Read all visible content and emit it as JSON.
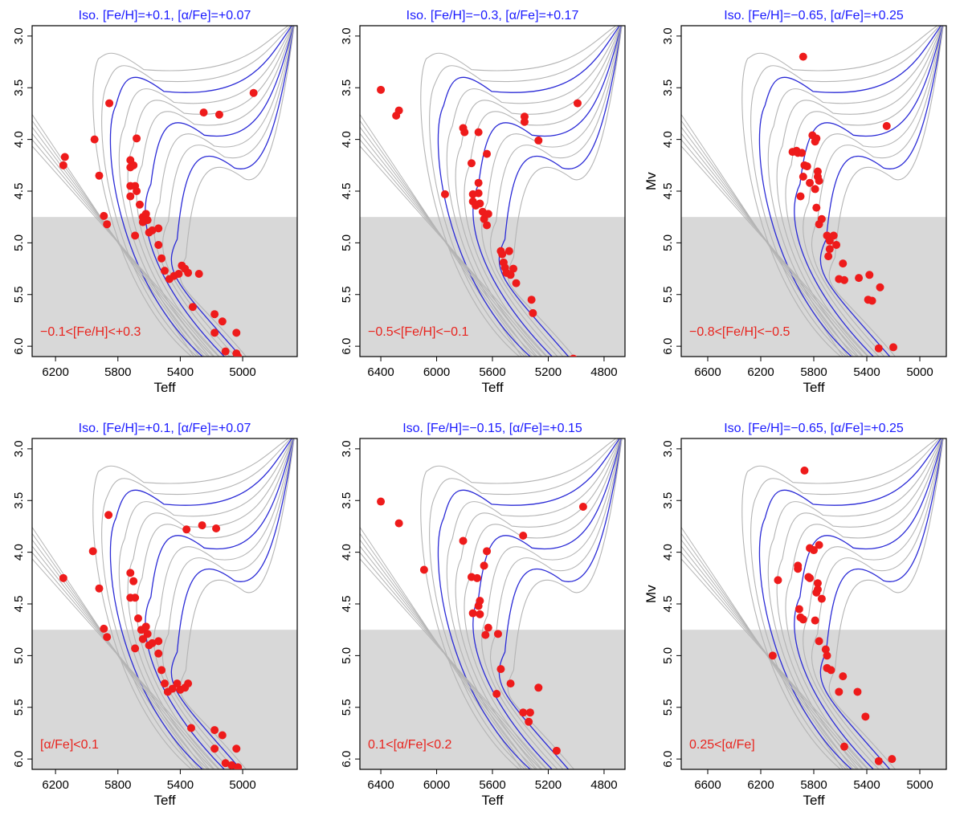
{
  "figure": {
    "colors": {
      "isochrone_main": "#2b2bd6",
      "isochrone_other": "#b4b4b4",
      "points": "#ee1b1b",
      "title": "#1a1aff",
      "annotation": "#e8241e",
      "shade": "#d8d8d8"
    }
  },
  "chart_data": [
    {
      "type": "scatter",
      "title": "Iso. [Fe/H]=+0.1,  [α/Fe]=+0.07",
      "xlabel": "Teff",
      "ylabel": "",
      "xlim": [
        6350,
        4650
      ],
      "ylim": [
        6.1,
        2.9
      ],
      "xticks": [
        "6200",
        "5800",
        "5400",
        "5000"
      ],
      "yticks": [
        "3.0",
        "3.5",
        "4.0",
        "4.5",
        "5.0",
        "5.5",
        "6.0"
      ],
      "shade_mv_min": 4.75,
      "annotation": "−0.1<[Fe/H]<+0.3",
      "points": [
        [
          6140,
          4.17
        ],
        [
          6150,
          4.25
        ],
        [
          5950,
          4.0
        ],
        [
          5920,
          4.35
        ],
        [
          5890,
          4.74
        ],
        [
          5870,
          4.82
        ],
        [
          5855,
          3.65
        ],
        [
          5680,
          3.99
        ],
        [
          5720,
          4.2
        ],
        [
          5700,
          4.25
        ],
        [
          5720,
          4.27
        ],
        [
          5720,
          4.45
        ],
        [
          5690,
          4.45
        ],
        [
          5720,
          4.55
        ],
        [
          5680,
          4.5
        ],
        [
          5660,
          4.63
        ],
        [
          5640,
          4.75
        ],
        [
          5620,
          4.72
        ],
        [
          5610,
          4.78
        ],
        [
          5640,
          4.8
        ],
        [
          5600,
          4.9
        ],
        [
          5580,
          4.88
        ],
        [
          5540,
          4.86
        ],
        [
          5690,
          4.93
        ],
        [
          5540,
          5.02
        ],
        [
          5520,
          5.15
        ],
        [
          5500,
          5.27
        ],
        [
          5470,
          5.35
        ],
        [
          5440,
          5.32
        ],
        [
          5410,
          5.3
        ],
        [
          5390,
          5.22
        ],
        [
          5370,
          5.25
        ],
        [
          5350,
          5.29
        ],
        [
          5320,
          5.62
        ],
        [
          5280,
          5.3
        ],
        [
          5250,
          3.74
        ],
        [
          5150,
          3.76
        ],
        [
          5180,
          5.69
        ],
        [
          5130,
          5.76
        ],
        [
          5180,
          5.87
        ],
        [
          5040,
          5.87
        ],
        [
          5110,
          6.05
        ],
        [
          5040,
          6.07
        ],
        [
          5030,
          6.1
        ],
        [
          4930,
          3.55
        ]
      ]
    },
    {
      "type": "scatter",
      "title": "Iso. [Fe/H]=−0.3,  [α/Fe]=+0.17",
      "xlabel": "Teff",
      "ylabel": "",
      "xlim": [
        6550,
        4650
      ],
      "ylim": [
        6.1,
        2.9
      ],
      "xticks": [
        "6400",
        "6000",
        "5600",
        "5200",
        "4800"
      ],
      "yticks": [
        "3.0",
        "3.5",
        "4.0",
        "4.5",
        "5.0",
        "5.5",
        "6.0"
      ],
      "shade_mv_min": 4.75,
      "annotation": "−0.5<[Fe/H]<−0.1",
      "points": [
        [
          6400,
          3.52
        ],
        [
          6290,
          3.77
        ],
        [
          6270,
          3.72
        ],
        [
          5940,
          4.53
        ],
        [
          5810,
          3.89
        ],
        [
          5800,
          3.93
        ],
        [
          5750,
          4.23
        ],
        [
          5740,
          4.53
        ],
        [
          5740,
          4.6
        ],
        [
          5720,
          4.64
        ],
        [
          5700,
          4.42
        ],
        [
          5700,
          4.52
        ],
        [
          5690,
          4.62
        ],
        [
          5700,
          3.93
        ],
        [
          5670,
          4.7
        ],
        [
          5640,
          4.14
        ],
        [
          5660,
          4.77
        ],
        [
          5640,
          4.83
        ],
        [
          5630,
          4.72
        ],
        [
          5540,
          5.08
        ],
        [
          5530,
          5.11
        ],
        [
          5520,
          5.19
        ],
        [
          5510,
          5.24
        ],
        [
          5500,
          5.29
        ],
        [
          5480,
          5.08
        ],
        [
          5470,
          5.31
        ],
        [
          5450,
          5.25
        ],
        [
          5430,
          5.39
        ],
        [
          5370,
          3.78
        ],
        [
          5370,
          3.83
        ],
        [
          5270,
          4.01
        ],
        [
          5320,
          5.55
        ],
        [
          5310,
          5.68
        ],
        [
          5020,
          6.12
        ],
        [
          4990,
          3.65
        ]
      ]
    },
    {
      "type": "scatter",
      "title": "Iso. [Fe/H]=−0.65,  [α/Fe]=+0.25",
      "xlabel": "Teff",
      "ylabel": "Mv",
      "xlim": [
        6800,
        4800
      ],
      "ylim": [
        6.1,
        2.9
      ],
      "xticks": [
        "6600",
        "6200",
        "5800",
        "5400",
        "5000"
      ],
      "yticks": [
        "3.0",
        "3.5",
        "4.0",
        "4.5",
        "5.0",
        "5.5",
        "6.0"
      ],
      "shade_mv_min": 4.75,
      "annotation": "−0.8<[Fe/H]<−0.5",
      "points": [
        [
          5880,
          3.2
        ],
        [
          5960,
          4.12
        ],
        [
          5930,
          4.11
        ],
        [
          5920,
          4.13
        ],
        [
          5890,
          4.13
        ],
        [
          5880,
          4.36
        ],
        [
          5870,
          4.25
        ],
        [
          5850,
          4.26
        ],
        [
          5830,
          4.42
        ],
        [
          5810,
          3.96
        ],
        [
          5790,
          4.02
        ],
        [
          5780,
          3.99
        ],
        [
          5770,
          4.31
        ],
        [
          5770,
          4.36
        ],
        [
          5760,
          4.4
        ],
        [
          5790,
          4.48
        ],
        [
          5780,
          4.66
        ],
        [
          5760,
          4.82
        ],
        [
          5740,
          4.77
        ],
        [
          5700,
          4.93
        ],
        [
          5680,
          4.98
        ],
        [
          5680,
          5.06
        ],
        [
          5690,
          5.13
        ],
        [
          5650,
          4.93
        ],
        [
          5630,
          5.02
        ],
        [
          5610,
          5.35
        ],
        [
          5580,
          5.2
        ],
        [
          5570,
          5.36
        ],
        [
          5460,
          5.34
        ],
        [
          5380,
          5.31
        ],
        [
          5390,
          5.55
        ],
        [
          5360,
          5.56
        ],
        [
          5300,
          5.43
        ],
        [
          5250,
          3.87
        ],
        [
          5310,
          6.02
        ],
        [
          5200,
          6.01
        ],
        [
          5900,
          4.55
        ]
      ]
    },
    {
      "type": "scatter",
      "title": "Iso. [Fe/H]=+0.1,  [α/Fe]=+0.07",
      "xlabel": "Teff",
      "ylabel": "",
      "xlim": [
        6350,
        4650
      ],
      "ylim": [
        6.1,
        2.9
      ],
      "xticks": [
        "6200",
        "5800",
        "5400",
        "5000"
      ],
      "yticks": [
        "3.0",
        "3.5",
        "4.0",
        "4.5",
        "5.0",
        "5.5",
        "6.0"
      ],
      "shade_mv_min": 4.75,
      "annotation": "[α/Fe]<0.1",
      "points": [
        [
          6150,
          4.25
        ],
        [
          5960,
          3.99
        ],
        [
          5920,
          4.35
        ],
        [
          5890,
          4.74
        ],
        [
          5870,
          4.82
        ],
        [
          5860,
          3.64
        ],
        [
          5720,
          4.2
        ],
        [
          5700,
          4.28
        ],
        [
          5690,
          4.44
        ],
        [
          5720,
          4.44
        ],
        [
          5670,
          4.64
        ],
        [
          5650,
          4.75
        ],
        [
          5620,
          4.72
        ],
        [
          5610,
          4.79
        ],
        [
          5640,
          4.84
        ],
        [
          5600,
          4.9
        ],
        [
          5580,
          4.88
        ],
        [
          5690,
          4.93
        ],
        [
          5540,
          4.86
        ],
        [
          5540,
          4.98
        ],
        [
          5520,
          5.14
        ],
        [
          5500,
          5.27
        ],
        [
          5480,
          5.35
        ],
        [
          5450,
          5.32
        ],
        [
          5420,
          5.27
        ],
        [
          5400,
          5.33
        ],
        [
          5370,
          5.31
        ],
        [
          5350,
          5.27
        ],
        [
          5330,
          5.7
        ],
        [
          5360,
          3.78
        ],
        [
          5260,
          3.74
        ],
        [
          5170,
          3.77
        ],
        [
          5180,
          5.72
        ],
        [
          5130,
          5.77
        ],
        [
          5180,
          5.9
        ],
        [
          5110,
          6.04
        ],
        [
          5070,
          6.06
        ],
        [
          5040,
          5.9
        ],
        [
          5030,
          6.08
        ]
      ]
    },
    {
      "type": "scatter",
      "title": "Iso. [Fe/H]=−0.15,  [α/Fe]=+0.15",
      "xlabel": "Teff",
      "ylabel": "",
      "xlim": [
        6550,
        4650
      ],
      "ylim": [
        6.1,
        2.9
      ],
      "xticks": [
        "6400",
        "6000",
        "5600",
        "5200",
        "4800"
      ],
      "yticks": [
        "3.0",
        "3.5",
        "4.0",
        "4.5",
        "5.0",
        "5.5",
        "6.0"
      ],
      "shade_mv_min": 4.75,
      "annotation": "0.1<[α/Fe]<0.2",
      "points": [
        [
          6400,
          3.51
        ],
        [
          6270,
          3.72
        ],
        [
          6090,
          4.17
        ],
        [
          5810,
          3.89
        ],
        [
          5750,
          4.24
        ],
        [
          5740,
          4.59
        ],
        [
          5710,
          4.25
        ],
        [
          5700,
          4.52
        ],
        [
          5690,
          4.6
        ],
        [
          5690,
          4.47
        ],
        [
          5660,
          4.13
        ],
        [
          5640,
          3.99
        ],
        [
          5650,
          4.8
        ],
        [
          5630,
          4.73
        ],
        [
          5560,
          4.79
        ],
        [
          5540,
          5.13
        ],
        [
          5570,
          5.37
        ],
        [
          5470,
          5.27
        ],
        [
          5380,
          3.84
        ],
        [
          5380,
          5.55
        ],
        [
          5330,
          5.55
        ],
        [
          5340,
          5.64
        ],
        [
          5270,
          5.31
        ],
        [
          5140,
          5.92
        ],
        [
          4950,
          3.56
        ]
      ]
    },
    {
      "type": "scatter",
      "title": "Iso. [Fe/H]=−0.65,  [α/Fe]=+0.25",
      "xlabel": "Teff",
      "ylabel": "Mv",
      "xlim": [
        6800,
        4800
      ],
      "ylim": [
        6.1,
        2.9
      ],
      "xticks": [
        "6600",
        "6200",
        "5800",
        "5400",
        "5000"
      ],
      "yticks": [
        "3.0",
        "3.5",
        "4.0",
        "4.5",
        "5.0",
        "5.5",
        "6.0"
      ],
      "shade_mv_min": 4.75,
      "annotation": "0.25<[α/Fe]",
      "points": [
        [
          5870,
          3.21
        ],
        [
          6070,
          4.27
        ],
        [
          6110,
          5.0
        ],
        [
          5920,
          4.13
        ],
        [
          5920,
          4.16
        ],
        [
          5910,
          4.55
        ],
        [
          5900,
          4.63
        ],
        [
          5880,
          4.65
        ],
        [
          5840,
          4.24
        ],
        [
          5830,
          4.25
        ],
        [
          5830,
          3.96
        ],
        [
          5800,
          3.98
        ],
        [
          5760,
          3.93
        ],
        [
          5770,
          4.3
        ],
        [
          5770,
          4.36
        ],
        [
          5780,
          4.39
        ],
        [
          5790,
          4.66
        ],
        [
          5760,
          4.86
        ],
        [
          5740,
          4.45
        ],
        [
          5710,
          4.94
        ],
        [
          5700,
          5.0
        ],
        [
          5700,
          5.12
        ],
        [
          5670,
          5.14
        ],
        [
          5610,
          5.35
        ],
        [
          5580,
          5.2
        ],
        [
          5470,
          5.35
        ],
        [
          5410,
          5.59
        ],
        [
          5570,
          5.88
        ],
        [
          5310,
          6.02
        ],
        [
          5210,
          6.0
        ]
      ]
    }
  ]
}
